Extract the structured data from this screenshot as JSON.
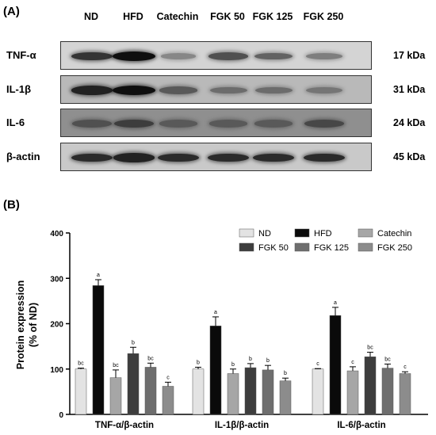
{
  "panel_a": {
    "label": "(A)",
    "lanes": [
      "ND",
      "HFD",
      "Catechin",
      "FGK 50",
      "FGK 125",
      "FGK 250"
    ],
    "rows": [
      {
        "name": "TNF-α",
        "kda": "17 kDa",
        "intensity": [
          0.8,
          1.0,
          0.35,
          0.65,
          0.55,
          0.4
        ],
        "background": "#d4d4d4"
      },
      {
        "name": "IL-1β",
        "kda": "31 kDa",
        "intensity": [
          0.9,
          1.0,
          0.6,
          0.5,
          0.5,
          0.45
        ],
        "background": "#b9b9b9"
      },
      {
        "name": "IL-6",
        "kda": "24 kDa",
        "intensity": [
          0.65,
          0.75,
          0.6,
          0.6,
          0.6,
          0.7
        ],
        "background": "#8f8f8f"
      },
      {
        "name": "β-actin",
        "kda": "45 kDa",
        "intensity": [
          0.85,
          0.9,
          0.85,
          0.85,
          0.85,
          0.85
        ],
        "background": "#c9c9c9"
      }
    ]
  },
  "panel_b": {
    "label": "(B)"
  },
  "chart_data": {
    "type": "bar",
    "categories": [
      "TNF-α/β-actin",
      "IL-1β/β-actin",
      "IL-6/β-actin"
    ],
    "ylabel": "Protein expression\n(% of ND)",
    "ylim": [
      0,
      400
    ],
    "yticks": [
      0,
      100,
      200,
      300,
      400
    ],
    "grid": false,
    "legend_position": "top-right",
    "series": [
      {
        "name": "ND",
        "color": "#e3e3e3",
        "values": [
          100,
          100,
          100
        ],
        "errors": [
          2,
          4,
          1
        ],
        "letters": [
          "bc",
          "b",
          "c"
        ]
      },
      {
        "name": "HFD",
        "color": "#0a0a0a",
        "values": [
          284,
          195,
          218
        ],
        "errors": [
          13,
          20,
          18
        ],
        "letters": [
          "a",
          "a",
          "a"
        ]
      },
      {
        "name": "Catechin",
        "color": "#a6a6a6",
        "values": [
          81,
          90,
          96
        ],
        "errors": [
          17,
          10,
          9
        ],
        "letters": [
          "bc",
          "b",
          "c"
        ]
      },
      {
        "name": "FGK 50",
        "color": "#3d3d3d",
        "values": [
          134,
          103,
          127
        ],
        "errors": [
          14,
          9,
          10
        ],
        "letters": [
          "b",
          "b",
          "bc"
        ]
      },
      {
        "name": "FGK 125",
        "color": "#6e6e6e",
        "values": [
          104,
          98,
          102
        ],
        "errors": [
          9,
          10,
          9
        ],
        "letters": [
          "bc",
          "b",
          "bc"
        ]
      },
      {
        "name": "FGK 250",
        "color": "#8c8c8c",
        "values": [
          62,
          74,
          90
        ],
        "errors": [
          9,
          6,
          4
        ],
        "letters": [
          "c",
          "b",
          "c"
        ]
      }
    ]
  }
}
